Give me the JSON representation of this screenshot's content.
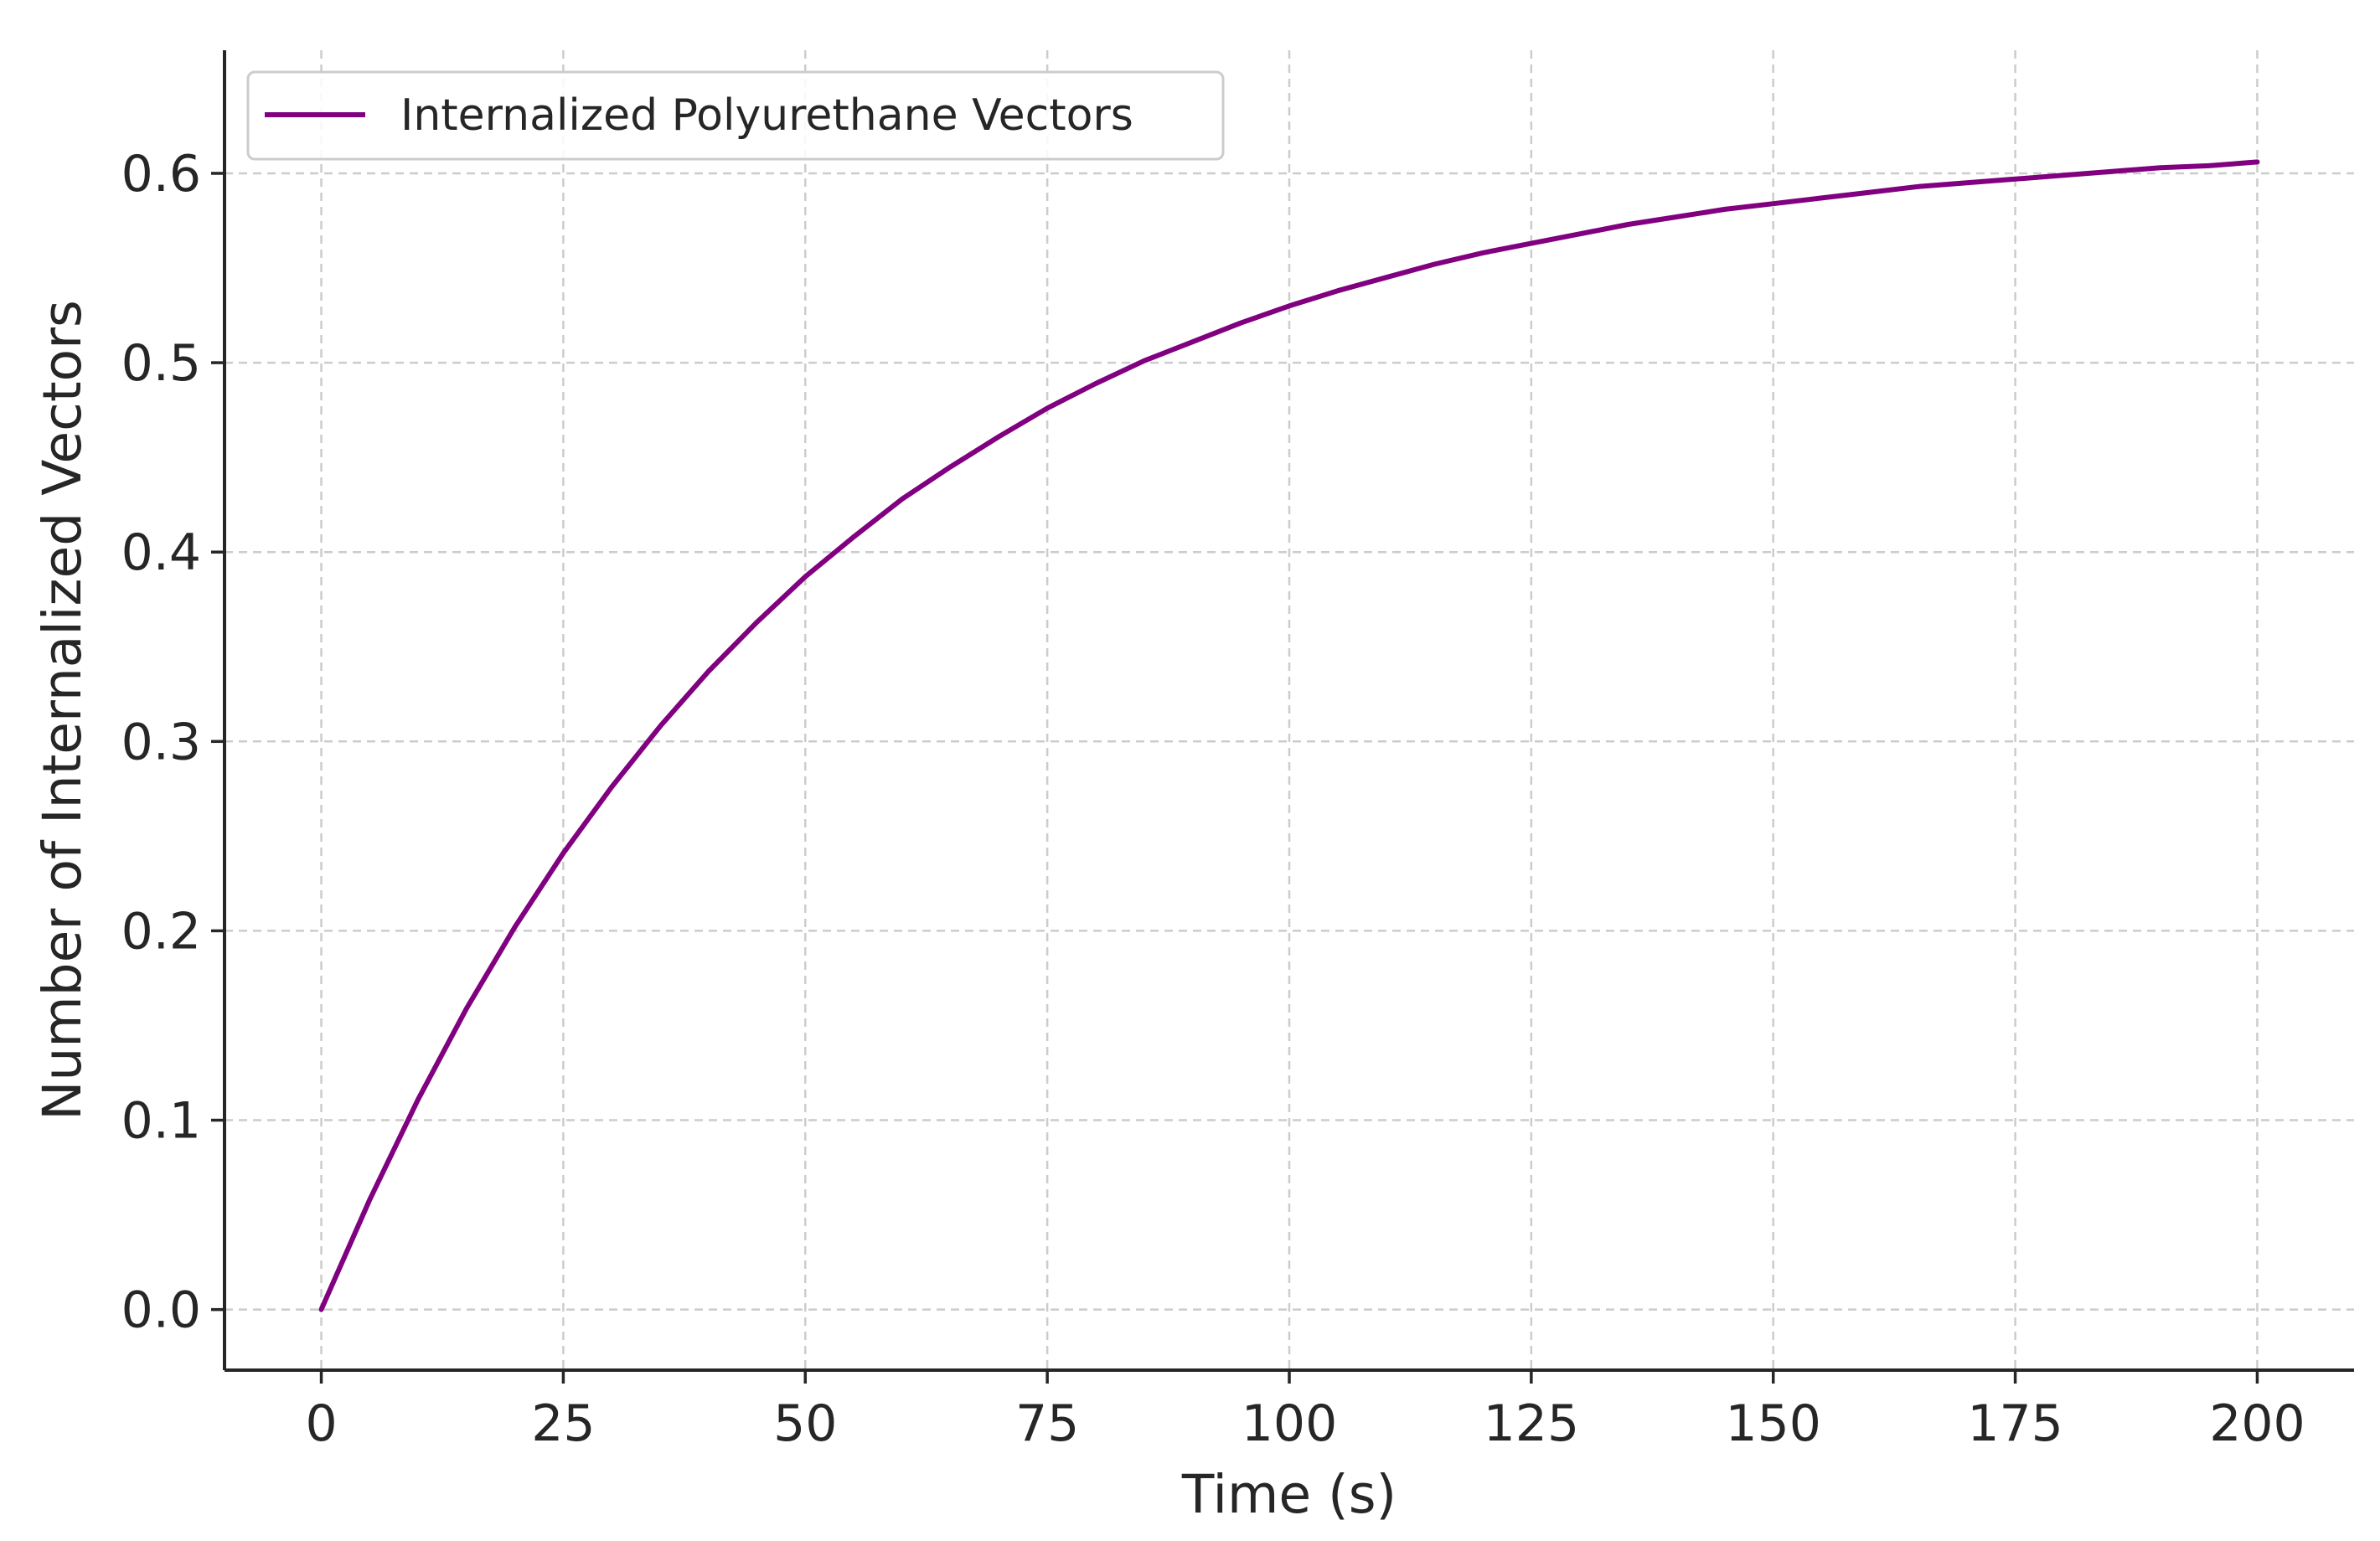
{
  "chart_data": {
    "type": "line",
    "title": "",
    "xlabel": "Time (s)",
    "ylabel": "Number of Internalized Vectors",
    "xlim": [
      -10,
      210
    ],
    "ylim": [
      -0.032,
      0.665
    ],
    "xticks": [
      0,
      25,
      50,
      75,
      100,
      125,
      150,
      175,
      200
    ],
    "xtick_labels": [
      "0",
      "25",
      "50",
      "75",
      "100",
      "125",
      "150",
      "175",
      "200"
    ],
    "yticks": [
      0.0,
      0.1,
      0.2,
      0.3,
      0.4,
      0.5,
      0.6
    ],
    "ytick_labels": [
      "0.0",
      "0.1",
      "0.2",
      "0.3",
      "0.4",
      "0.5",
      "0.6"
    ],
    "grid": true,
    "legend": {
      "placement": "upper-left"
    },
    "series": [
      {
        "name": "Internalized Polyurethane Vectors",
        "color": "#800080",
        "x": [
          0,
          5,
          10,
          15,
          20,
          25,
          30,
          35,
          40,
          45,
          50,
          55,
          60,
          65,
          70,
          75,
          80,
          85,
          90,
          95,
          100,
          105,
          110,
          115,
          120,
          125,
          130,
          135,
          140,
          145,
          150,
          155,
          160,
          165,
          170,
          175,
          180,
          185,
          190,
          195,
          200
        ],
        "y": [
          0.0,
          0.058,
          0.111,
          0.159,
          0.202,
          0.241,
          0.276,
          0.308,
          0.337,
          0.363,
          0.387,
          0.408,
          0.428,
          0.445,
          0.461,
          0.476,
          0.489,
          0.501,
          0.511,
          0.521,
          0.53,
          0.538,
          0.545,
          0.552,
          0.558,
          0.563,
          0.568,
          0.573,
          0.577,
          0.581,
          0.584,
          0.587,
          0.59,
          0.593,
          0.595,
          0.597,
          0.599,
          0.601,
          0.603,
          0.604,
          0.606
        ]
      }
    ]
  }
}
